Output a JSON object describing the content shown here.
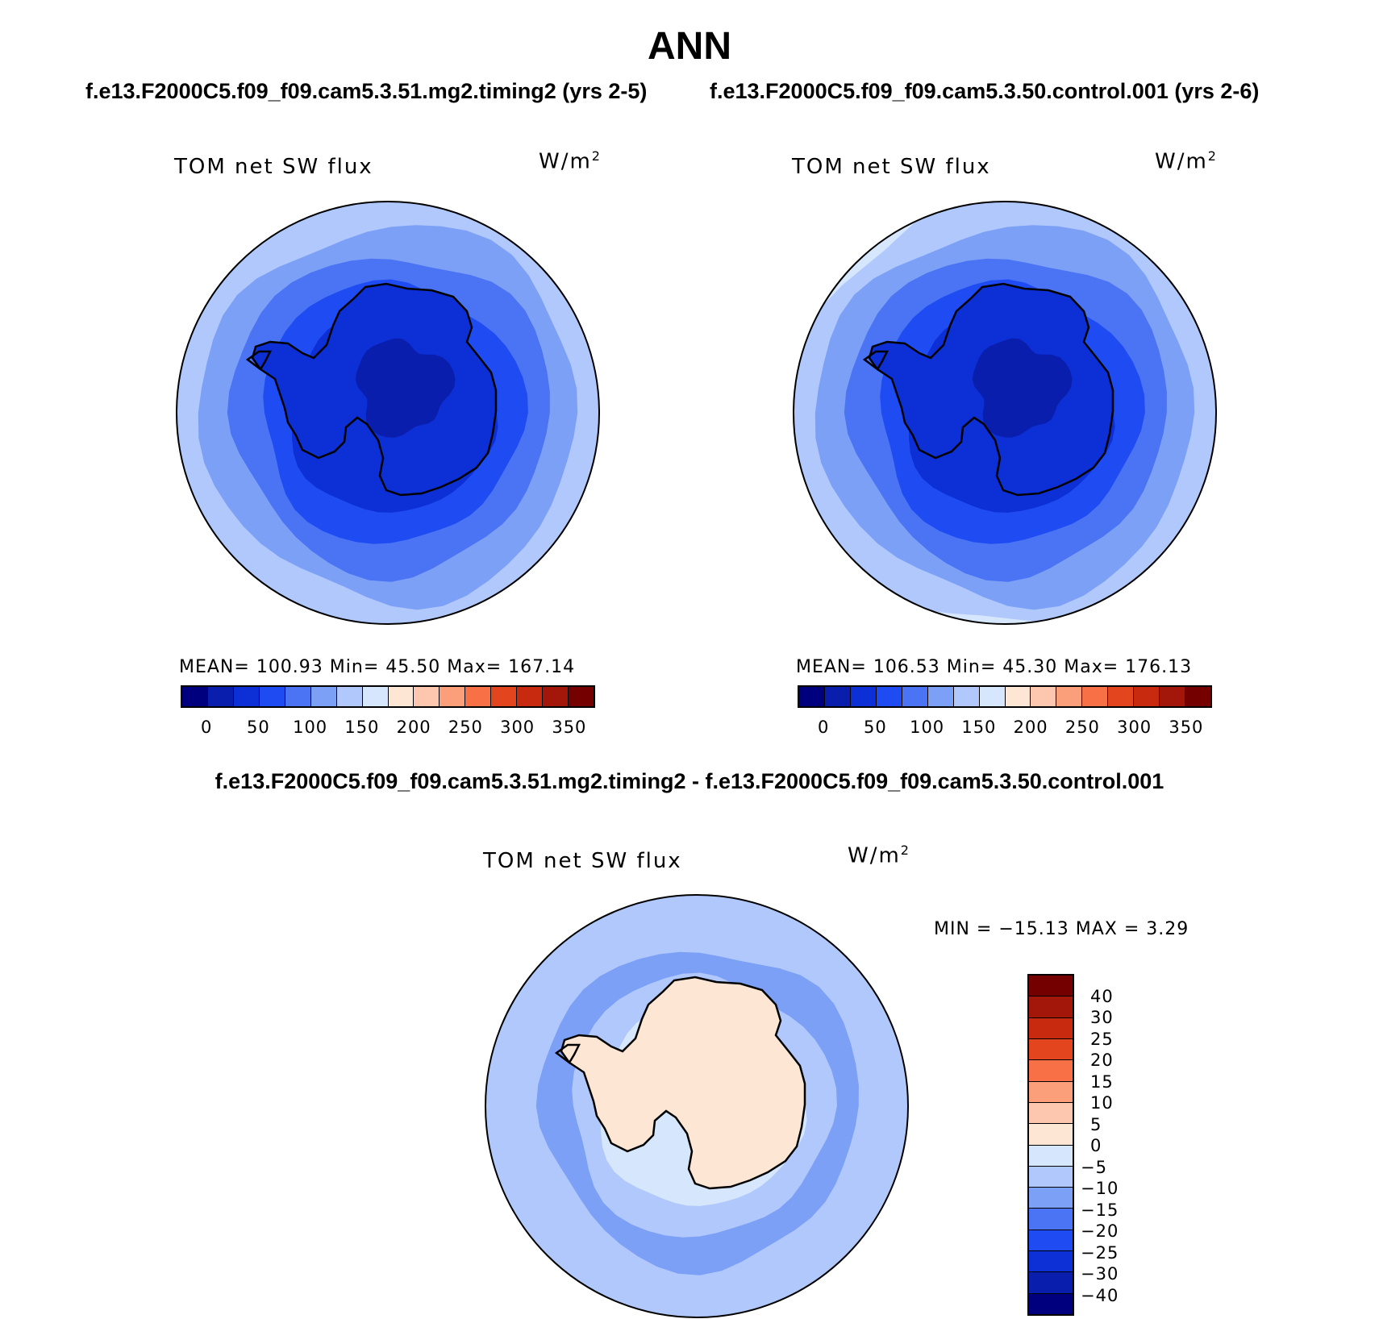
{
  "title": "ANN",
  "panels": [
    {
      "case": "f.e13.F2000C5.f09_f09.cam5.3.51.mg2.timing2 (yrs 2-5)",
      "label": "TOM net SW flux",
      "units": "W/m",
      "units_sup": "2",
      "stats": "MEAN= 100.93   Min=   45.50   Max= 167.14",
      "colorbar_ticks": [
        "0",
        "50",
        "100",
        "150",
        "200",
        "250",
        "300",
        "350"
      ],
      "ring_levels": [
        "#0d2fd6",
        "#1f4cf2",
        "#4a74f3",
        "#7da0f7",
        "#b0c8fb"
      ]
    },
    {
      "case": "f.e13.F2000C5.f09_f09.cam5.3.50.control.001 (yrs 2-6)",
      "label": "TOM net SW flux",
      "units": "W/m",
      "units_sup": "2",
      "stats": "MEAN= 106.53   Min=   45.30   Max= 176.13",
      "colorbar_ticks": [
        "0",
        "50",
        "100",
        "150",
        "200",
        "250",
        "300",
        "350"
      ],
      "ring_levels": [
        "#0d2fd6",
        "#1f4cf2",
        "#4a74f3",
        "#7da0f7",
        "#b0c8fb",
        "#d6e6fc"
      ]
    }
  ],
  "abs_colors": [
    "#00007f",
    "#0a1eae",
    "#0d2fd6",
    "#1f4cf2",
    "#4a74f3",
    "#7da0f7",
    "#b0c8fb",
    "#d6e6fc",
    "#fde7d4",
    "#fcc7ae",
    "#fb9f7a",
    "#f87046",
    "#e3451f",
    "#c72a0e",
    "#a3170a",
    "#750000"
  ],
  "diff": {
    "title": "f.e13.F2000C5.f09_f09.cam5.3.51.mg2.timing2 - f.e13.F2000C5.f09_f09.cam5.3.50.control.001",
    "label": "TOM net SW flux",
    "units": "W/m",
    "units_sup": "2",
    "minmax": "MIN = −15.13 MAX =    3.29",
    "colorbar_labels": [
      "40",
      "30",
      "25",
      "20",
      "15",
      "10",
      "5",
      "0",
      "−5",
      "−10",
      "−15",
      "−20",
      "−25",
      "−30",
      "−40"
    ],
    "colors": [
      "#00007f",
      "#0a1eae",
      "#0d2fd6",
      "#1f4cf2",
      "#4a74f3",
      "#7da0f7",
      "#b0c8fb",
      "#d6e6fc",
      "#fde7d4",
      "#fcc7ae",
      "#fb9f7a",
      "#f87046",
      "#e3451f",
      "#c72a0e",
      "#a3170a",
      "#750000"
    ]
  }
}
